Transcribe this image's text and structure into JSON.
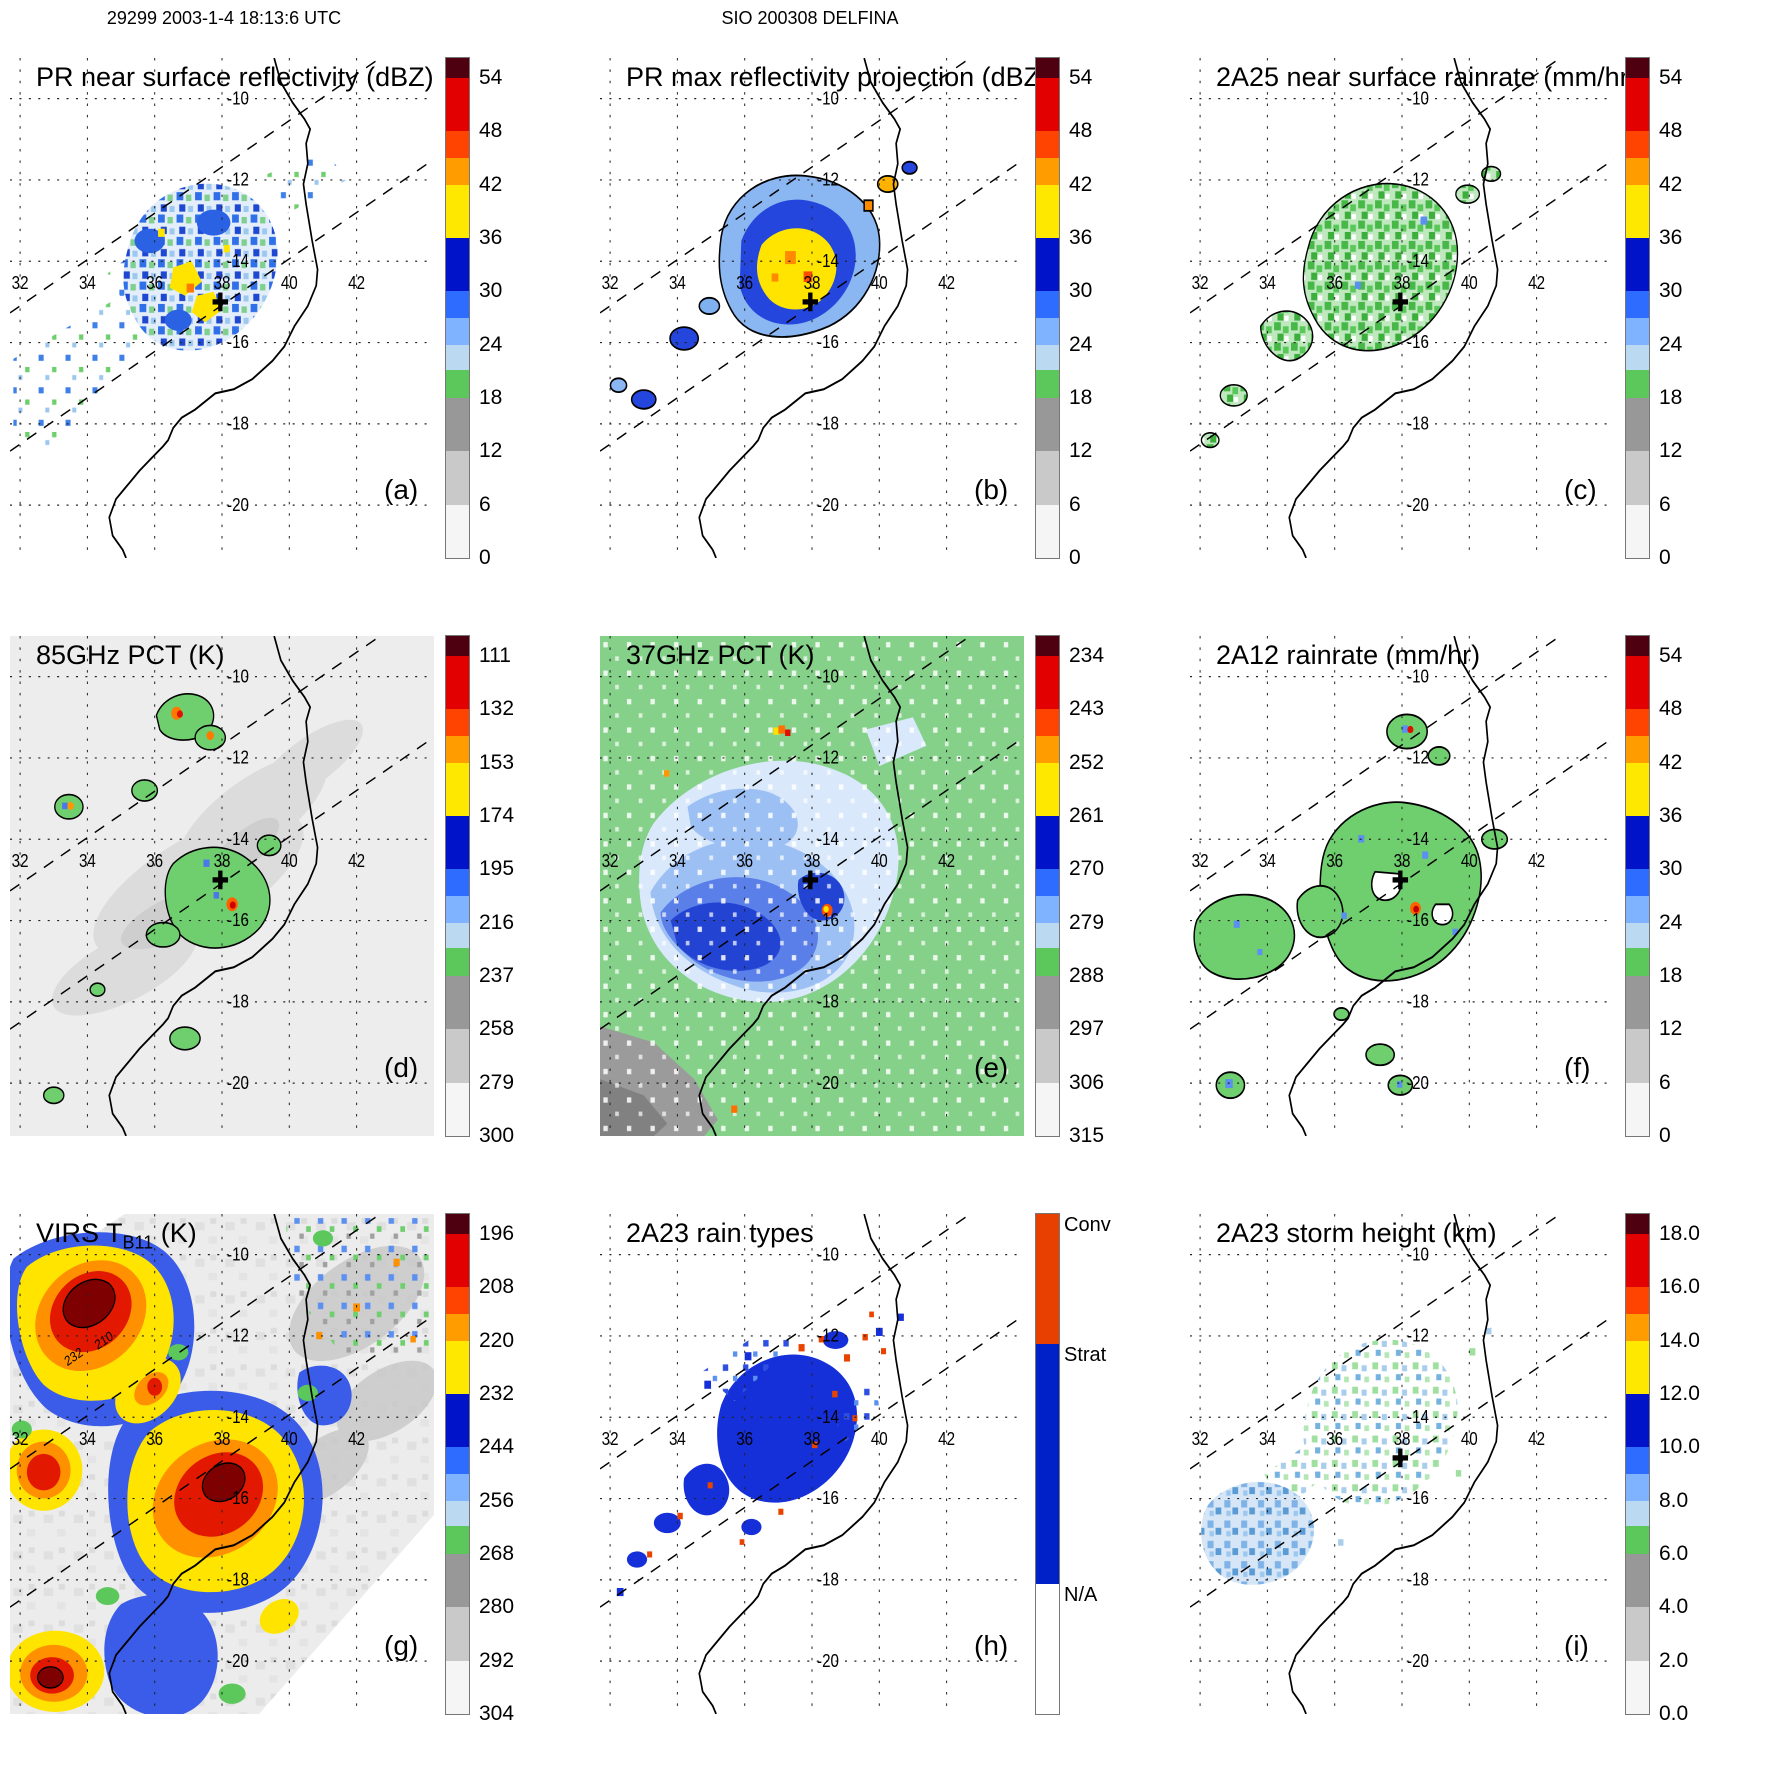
{
  "header": {
    "left": "29299 2003-1-4 18:13:6 UTC",
    "center": "SIO 200308 DELFINA"
  },
  "map": {
    "lon_labels": [
      "32",
      "34",
      "36",
      "38",
      "40",
      "42"
    ],
    "lat_labels": [
      "-10",
      "-12",
      "-14",
      "-16",
      "-18",
      "-20"
    ]
  },
  "colorbar_schemes": {
    "standard": [
      {
        "color": "#4f0010",
        "span": 4
      },
      {
        "color": "#e30000",
        "span": 10.67
      },
      {
        "color": "#ff4300",
        "span": 5.33
      },
      {
        "color": "#ff9c00",
        "span": 5.33
      },
      {
        "color": "#ffe800",
        "span": 10.67
      },
      {
        "color": "#0013c8",
        "span": 10.67
      },
      {
        "color": "#2e6bff",
        "span": 5.33
      },
      {
        "color": "#7fb2ff",
        "span": 5.33
      },
      {
        "color": "#bcd9f2",
        "span": 5.17
      },
      {
        "color": "#5cc85c",
        "span": 5.5
      },
      {
        "color": "#989898",
        "span": 10.67
      },
      {
        "color": "#c9c9c9",
        "span": 10.67
      },
      {
        "color": "#f5f5f5",
        "span": 10.66
      }
    ],
    "raintype": [
      {
        "color": "#e84000",
        "span": 26
      },
      {
        "color": "#0020c8",
        "span": 48
      },
      {
        "color": "#ffffff",
        "span": 26
      }
    ]
  },
  "panels": [
    {
      "id": "a",
      "title": "PR near surface reflectivity (dBZ)",
      "label": "(a)",
      "plus": true,
      "colorbar": {
        "kind": "standard",
        "ticks": [
          "54",
          "48",
          "42",
          "36",
          "30",
          "24",
          "18",
          "12",
          "6",
          "0"
        ]
      }
    },
    {
      "id": "b",
      "title": "PR max reflectivity projection (dBZ)",
      "label": "(b)",
      "plus": true,
      "colorbar": {
        "kind": "standard",
        "ticks": [
          "54",
          "48",
          "42",
          "36",
          "30",
          "24",
          "18",
          "12",
          "6",
          "0"
        ]
      }
    },
    {
      "id": "c",
      "title": "2A25 near surface rainrate (mm/hr)",
      "label": "(c)",
      "plus": true,
      "colorbar": {
        "kind": "standard",
        "ticks": [
          "54",
          "48",
          "42",
          "36",
          "30",
          "24",
          "18",
          "12",
          "6",
          "0"
        ]
      }
    },
    {
      "id": "d",
      "title": "85GHz PCT (K)",
      "label": "(d)",
      "plus": true,
      "colorbar": {
        "kind": "standard",
        "ticks": [
          "111",
          "132",
          "153",
          "174",
          "195",
          "216",
          "237",
          "258",
          "279",
          "300"
        ]
      }
    },
    {
      "id": "e",
      "title": "37GHz PCT (K)",
      "label": "(e)",
      "plus": true,
      "colorbar": {
        "kind": "standard",
        "ticks": [
          "234",
          "243",
          "252",
          "261",
          "270",
          "279",
          "288",
          "297",
          "306",
          "315"
        ]
      }
    },
    {
      "id": "f",
      "title": "2A12 rainrate (mm/hr)",
      "label": "(f)",
      "plus": true,
      "colorbar": {
        "kind": "standard",
        "ticks": [
          "54",
          "48",
          "42",
          "36",
          "30",
          "24",
          "18",
          "12",
          "6",
          "0"
        ]
      }
    },
    {
      "id": "g",
      "title": "VIRS TB11 (K)",
      "title_parts": [
        "VIRS T",
        "B11",
        " (K)"
      ],
      "label": "(g)",
      "plus": false,
      "contour_labels": [
        "232",
        "210"
      ],
      "colorbar": {
        "kind": "standard",
        "ticks": [
          "196",
          "208",
          "220",
          "232",
          "244",
          "256",
          "268",
          "280",
          "292",
          "304"
        ]
      }
    },
    {
      "id": "h",
      "title": "2A23 rain types",
      "label": "(h)",
      "plus": false,
      "colorbar": {
        "kind": "raintype",
        "labels": [
          "Conv",
          "Strat",
          "N/A"
        ]
      }
    },
    {
      "id": "i",
      "title": "2A23 storm height (km)",
      "label": "(i)",
      "plus": true,
      "colorbar": {
        "kind": "standard",
        "ticks": [
          "18.0",
          "16.0",
          "14.0",
          "12.0",
          "10.0",
          "8.0",
          "6.0",
          "4.0",
          "2.0",
          "0.0"
        ]
      }
    }
  ],
  "chart_data": {
    "type": "heatmap",
    "title": "TRMM orbit 29299 2003-1-4 18:13:6 UTC — SIO 200308 DELFINA",
    "layout": "3x3 geographic map panels, shared extent, colorbar at right of each panel",
    "map_extent": {
      "lon_range": [
        31.7,
        44.3
      ],
      "lat_range": [
        -21.3,
        -9.0
      ]
    },
    "lon_gridlines": [
      32,
      34,
      36,
      38,
      40,
      42
    ],
    "lat_gridlines": [
      -10,
      -12,
      -14,
      -16,
      -18,
      -20
    ],
    "storm_center_marker": {
      "symbol": "+",
      "lon": 38.0,
      "lat": -15.0
    },
    "swath_edges": "two dashed parallel lines running SW-NE across all panels",
    "coastline": "Mozambique/East Africa coast from about (39.5E,-9S) to (35E,-21.3S)",
    "panels": [
      {
        "panel": "a",
        "quantity": "PR near surface reflectivity",
        "units": "dBZ",
        "colorbar_ticks_top_to_bottom": [
          54,
          48,
          42,
          36,
          30,
          24,
          18,
          12,
          6,
          0
        ],
        "features": "speckled blue/green echo band inside PR swath, yellow-orange convective cores near 37E 15S"
      },
      {
        "panel": "b",
        "quantity": "PR max reflectivity projection",
        "units": "dBZ",
        "colorbar_ticks_top_to_bottom": [
          54,
          48,
          42,
          36,
          30,
          24,
          18,
          12,
          6,
          0
        ],
        "features": "same band, stronger: large yellow core ringed by blue, black contours"
      },
      {
        "panel": "c",
        "quantity": "2A25 near surface rainrate",
        "units": "mm/hr",
        "colorbar_ticks_top_to_bottom": [
          54,
          48,
          42,
          36,
          30,
          24,
          18,
          12,
          6,
          0
        ],
        "features": "green (~6 mm/hr) rain blobs with black outlines in PR swath"
      },
      {
        "panel": "d",
        "quantity": "85GHz PCT",
        "units": "K",
        "colorbar_ticks_top_to_bottom": [
          111,
          132,
          153,
          174,
          195,
          216,
          237,
          258,
          279,
          300
        ],
        "features": "light-gray wide TMI swath, green 237K contoured cells, orange/red cores near 37E 11S and 38.4E 15.6S"
      },
      {
        "panel": "e",
        "quantity": "37GHz PCT",
        "units": "K",
        "colorbar_ticks_top_to_bottom": [
          234,
          243,
          252,
          261,
          270,
          279,
          288,
          297,
          306,
          315
        ],
        "features": "green ~288K background, blue cold spiral band around storm center, gray land corner SW, small warm-core orange spots"
      },
      {
        "panel": "f",
        "quantity": "2A12 rainrate",
        "units": "mm/hr",
        "colorbar_ticks_top_to_bottom": [
          54,
          48,
          42,
          36,
          30,
          24,
          18,
          12,
          6,
          0
        ],
        "features": "large outlined green rain shield with blue speckles, red core near 38.4E 15.6S"
      },
      {
        "panel": "g",
        "quantity": "VIRS TB11",
        "units": "K",
        "colorbar_ticks_top_to_bottom": [
          196,
          208,
          220,
          232,
          244,
          256,
          268,
          280,
          292,
          304
        ],
        "contour_labels": [
          232,
          210
        ],
        "features": "full IR scene: dark-red/red cold cloud tops with yellow rings and blue fringes over gray cloud field"
      },
      {
        "panel": "h",
        "quantity": "2A23 rain types",
        "categories": [
          "Conv",
          "Strat",
          "N/A"
        ],
        "features": "blue stratiform mass with scattered red-orange convective pixels inside PR swath"
      },
      {
        "panel": "i",
        "quantity": "2A23 storm height",
        "units": "km",
        "colorbar_ticks_top_to_bottom": [
          18.0,
          16.0,
          14.0,
          12.0,
          10.0,
          8.0,
          6.0,
          4.0,
          2.0,
          0.0
        ],
        "features": "pale green/light blue speckled echo-top field, light-blue patch near 33.5E 17S"
      }
    ]
  }
}
